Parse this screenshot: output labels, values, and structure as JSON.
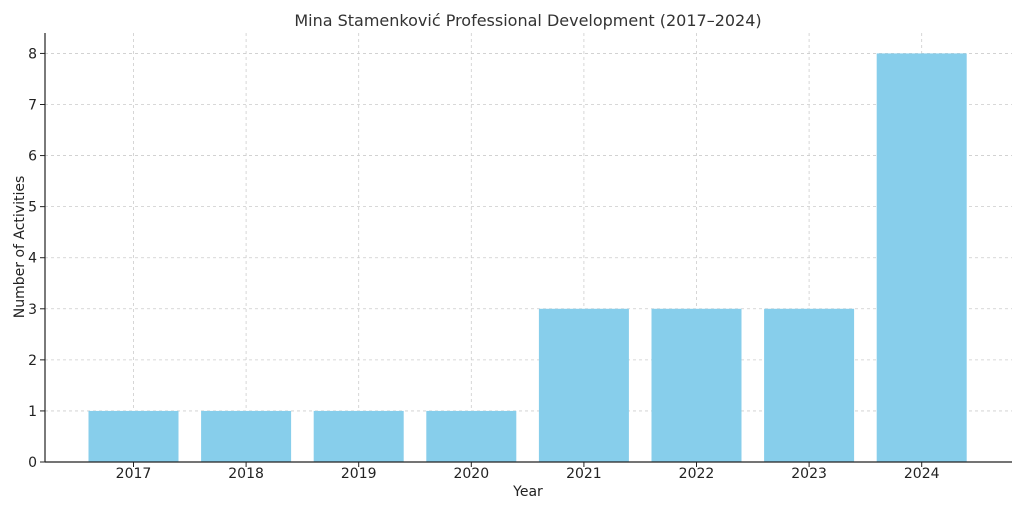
{
  "chart_data": {
    "type": "bar",
    "title": "Mina Stamenković Professional Development (2017–2024)",
    "xlabel": "Year",
    "ylabel": "Number of Activities",
    "categories": [
      "2017",
      "2018",
      "2019",
      "2020",
      "2021",
      "2022",
      "2023",
      "2024"
    ],
    "values": [
      1,
      1,
      1,
      1,
      3,
      3,
      3,
      8
    ],
    "ylim": [
      0,
      8.4
    ],
    "yticks": [
      0,
      1,
      2,
      3,
      4,
      5,
      6,
      7,
      8
    ],
    "grid": true,
    "bar_color": "#87CEEB"
  }
}
